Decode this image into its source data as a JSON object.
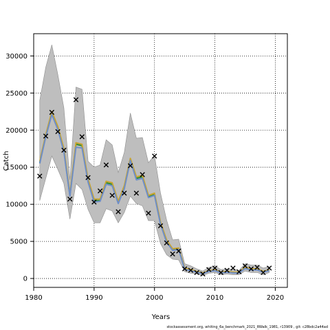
{
  "chart_data": {
    "type": "line",
    "title": "",
    "xlabel": "Years",
    "ylabel": "Catch",
    "xlim": [
      1980,
      2022
    ],
    "ylim": [
      -1200,
      33000
    ],
    "grid": true,
    "grid_style": "dotted",
    "x_ticks": [
      1980,
      1990,
      2000,
      2010,
      2020
    ],
    "y_ticks": [
      0,
      5000,
      10000,
      15000,
      20000,
      25000,
      30000
    ],
    "x": [
      1981,
      1982,
      1983,
      1984,
      1985,
      1986,
      1987,
      1988,
      1989,
      1990,
      1991,
      1992,
      1993,
      1994,
      1995,
      1996,
      1997,
      1998,
      1999,
      2000,
      2001,
      2002,
      2003,
      2004,
      2005,
      2006,
      2007,
      2008,
      2009,
      2010,
      2011,
      2012,
      2013,
      2014,
      2015,
      2016,
      2017,
      2018,
      2019
    ],
    "band": {
      "upper": [
        24000,
        28500,
        31500,
        27500,
        23000,
        13300,
        25800,
        25500,
        15800,
        15000,
        15300,
        18700,
        18000,
        14300,
        17000,
        22300,
        18900,
        19000,
        15600,
        16600,
        11500,
        7900,
        5200,
        5300,
        2000,
        1700,
        1300,
        1000,
        1500,
        1700,
        1200,
        1300,
        1200,
        1100,
        2000,
        1800,
        1800,
        1400,
        1600
      ],
      "lower": [
        10500,
        13500,
        16500,
        14700,
        12800,
        8000,
        12800,
        12000,
        9300,
        7500,
        7500,
        9400,
        9100,
        7500,
        8900,
        11100,
        10100,
        9800,
        7800,
        7800,
        4700,
        3200,
        2600,
        2500,
        900,
        700,
        600,
        400,
        700,
        800,
        500,
        600,
        500,
        500,
        1000,
        800,
        800,
        500,
        800
      ]
    },
    "series": [
      {
        "values": [
          15600,
          19200,
          22300,
          20300,
          17300,
          11200,
          18100,
          17900,
          13200,
          10500,
          10500,
          12900,
          12700,
          10200,
          12300,
          16000,
          13500,
          13700,
          11000,
          11300,
          7400,
          5000,
          3900,
          4000,
          1300,
          1100,
          900,
          700,
          1000,
          1100,
          800,
          900,
          800,
          800,
          1400,
          1200,
          1200,
          900,
          1100
        ]
      },
      {
        "values": [
          15800,
          19400,
          22500,
          20500,
          17500,
          11400,
          18300,
          18100,
          13400,
          10700,
          10700,
          13100,
          12900,
          10400,
          12500,
          16200,
          13700,
          13900,
          11200,
          11500,
          7600,
          5200,
          4000,
          4100,
          1400,
          1200,
          950,
          750,
          1050,
          1150,
          850,
          950,
          850,
          850,
          1500,
          1300,
          1300,
          950,
          1150
        ]
      },
      {
        "values": [
          15500,
          19100,
          22100,
          20100,
          17100,
          11100,
          17700,
          17600,
          13000,
          10300,
          10400,
          12700,
          12500,
          10100,
          12100,
          15900,
          13300,
          13500,
          10900,
          11200,
          7300,
          4900,
          3800,
          3900,
          1250,
          1050,
          850,
          650,
          950,
          1050,
          750,
          850,
          750,
          750,
          1350,
          1150,
          1150,
          850,
          1050
        ]
      }
    ],
    "observed": {
      "x": [
        1981,
        1982,
        1983,
        1984,
        1985,
        1986,
        1987,
        1988,
        1989,
        1990,
        1991,
        1992,
        1993,
        1994,
        1995,
        1996,
        1997,
        1998,
        1999,
        2000,
        2001,
        2002,
        2003,
        2004,
        2005,
        2006,
        2007,
        2008,
        2009,
        2010,
        2011,
        2012,
        2013,
        2014,
        2015,
        2016,
        2017,
        2018,
        2019
      ],
      "y": [
        13800,
        19200,
        22400,
        19800,
        17300,
        10700,
        24100,
        19100,
        13600,
        10300,
        11800,
        15300,
        11200,
        9000,
        11500,
        15200,
        11500,
        14000,
        8800,
        16500,
        7100,
        4800,
        3300,
        3700,
        1300,
        1100,
        800,
        600,
        1200,
        1400,
        800,
        1100,
        1400,
        900,
        1700,
        1300,
        1500,
        800,
        1400
      ]
    },
    "colors": {
      "band": "#bebebe",
      "band_edge": "#8c8c8c",
      "series": [
        "#2e8b2e",
        "#c8a42e",
        "#6e8ec8"
      ],
      "points": "#000000"
    }
  },
  "footer": "stockassessment.org, whiting_6a_benchmark_2021_RWalk_1981, r13909 , git: c28bdc2a44ad"
}
